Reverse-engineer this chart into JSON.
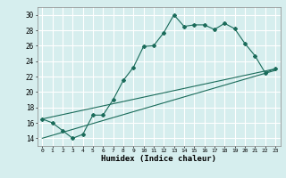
{
  "xlabel": "Humidex (Indice chaleur)",
  "ylabel": "",
  "bg_color": "#d6eeee",
  "grid_color": "#ffffff",
  "line_color": "#1a6b5a",
  "xlim": [
    -0.5,
    23.5
  ],
  "ylim": [
    13,
    31
  ],
  "yticks": [
    14,
    16,
    18,
    20,
    22,
    24,
    26,
    28,
    30
  ],
  "xticks": [
    0,
    1,
    2,
    3,
    4,
    5,
    6,
    7,
    8,
    9,
    10,
    11,
    12,
    13,
    14,
    15,
    16,
    17,
    18,
    19,
    20,
    21,
    22,
    23
  ],
  "series1_x": [
    0,
    1,
    2,
    3,
    4,
    5,
    6,
    7,
    8,
    9,
    10,
    11,
    12,
    13,
    14,
    15,
    16,
    17,
    18,
    19,
    20,
    21,
    22,
    23
  ],
  "series1_y": [
    16.5,
    16.0,
    15.0,
    14.0,
    14.5,
    17.0,
    17.0,
    19.0,
    21.5,
    23.2,
    25.9,
    26.0,
    27.7,
    30.0,
    28.5,
    28.7,
    28.7,
    28.1,
    28.9,
    28.2,
    26.3,
    24.7,
    22.5,
    23.0
  ],
  "series2_x": [
    0,
    23
  ],
  "series2_y": [
    16.5,
    23.0
  ],
  "series3_x": [
    0,
    23
  ],
  "series3_y": [
    14.0,
    22.8
  ]
}
